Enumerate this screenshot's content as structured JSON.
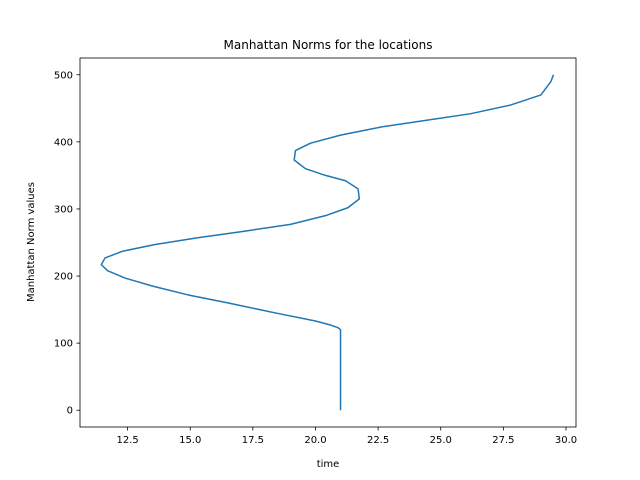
{
  "chart_data": {
    "type": "line",
    "title": "Manhattan Norms for the locations",
    "xlabel": "time",
    "ylabel": "Manhattan Norm values",
    "xlim": [
      10.6,
      30.4
    ],
    "ylim": [
      -25,
      525
    ],
    "xticks": [
      12.5,
      15.0,
      17.5,
      20.0,
      22.5,
      25.0,
      27.5,
      30.0
    ],
    "xtick_labels": [
      "12.5",
      "15.0",
      "17.5",
      "20.0",
      "22.5",
      "25.0",
      "27.5",
      "30.0"
    ],
    "yticks": [
      0,
      100,
      200,
      300,
      400,
      500
    ],
    "ytick_labels": [
      "0",
      "100",
      "200",
      "300",
      "400",
      "500"
    ],
    "grid": false,
    "series": [
      {
        "color": "#1f77b4",
        "x": [
          21.0,
          21.0,
          21.0,
          20.9,
          20.6,
          20.0,
          18.4,
          16.5,
          14.9,
          13.5,
          12.4,
          11.7,
          11.45,
          11.6,
          12.3,
          13.6,
          15.3,
          17.2,
          19.0,
          20.4,
          21.3,
          21.75,
          21.7,
          21.2,
          20.4,
          19.6,
          19.15,
          19.2,
          19.8,
          21.0,
          22.6,
          24.4,
          26.2,
          27.8,
          29.0,
          29.4,
          29.5
        ],
        "y": [
          0,
          60,
          120,
          123,
          127,
          133,
          145,
          160,
          172,
          185,
          197,
          208,
          217,
          227,
          237,
          247,
          257,
          267,
          277,
          290,
          302,
          315,
          330,
          342,
          350,
          360,
          373,
          387,
          398,
          410,
          422,
          432,
          442,
          455,
          470,
          490,
          500
        ]
      }
    ]
  }
}
